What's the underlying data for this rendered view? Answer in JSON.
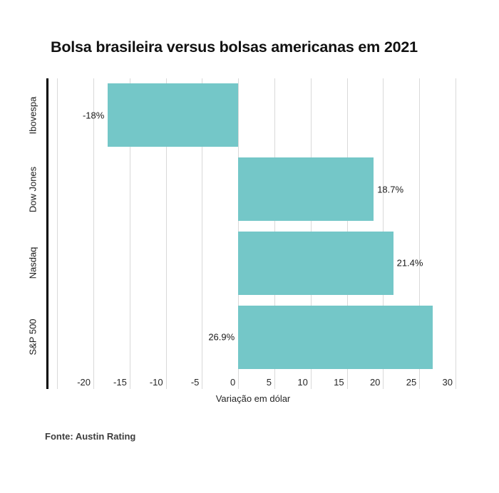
{
  "title": "Bolsa brasileira versus bolsas americanas em 2021",
  "source": "Fonte: Austin Rating",
  "chart_data": {
    "type": "bar",
    "orientation": "horizontal",
    "title": "Bolsa brasileira versus bolsas americanas em 2021",
    "categories": [
      "Ibovespa",
      "Dow Jones",
      "Nasdaq",
      "S&P 500"
    ],
    "values": [
      -18,
      18.7,
      21.4,
      26.9
    ],
    "value_labels": [
      "-18%",
      "18.7%",
      "21.4%",
      "26.9%"
    ],
    "value_label_sides": [
      "left",
      "right",
      "right",
      "left"
    ],
    "xlabel": "Variação em dólar",
    "ylabel": "",
    "xlim": [
      -26,
      36
    ],
    "xticks": [
      -20,
      -15,
      -10,
      -5,
      0,
      5,
      10,
      15,
      20,
      25,
      30
    ],
    "gridline_values": [
      -25,
      -20,
      -15,
      -10,
      -5,
      0,
      5,
      10,
      15,
      20,
      25,
      30
    ],
    "grid": true,
    "legend": false,
    "colors": {
      "bar": "#74C7C8",
      "axis": "#000000",
      "gridline": "#D9D9D9",
      "text": "#1A1A1A"
    }
  }
}
